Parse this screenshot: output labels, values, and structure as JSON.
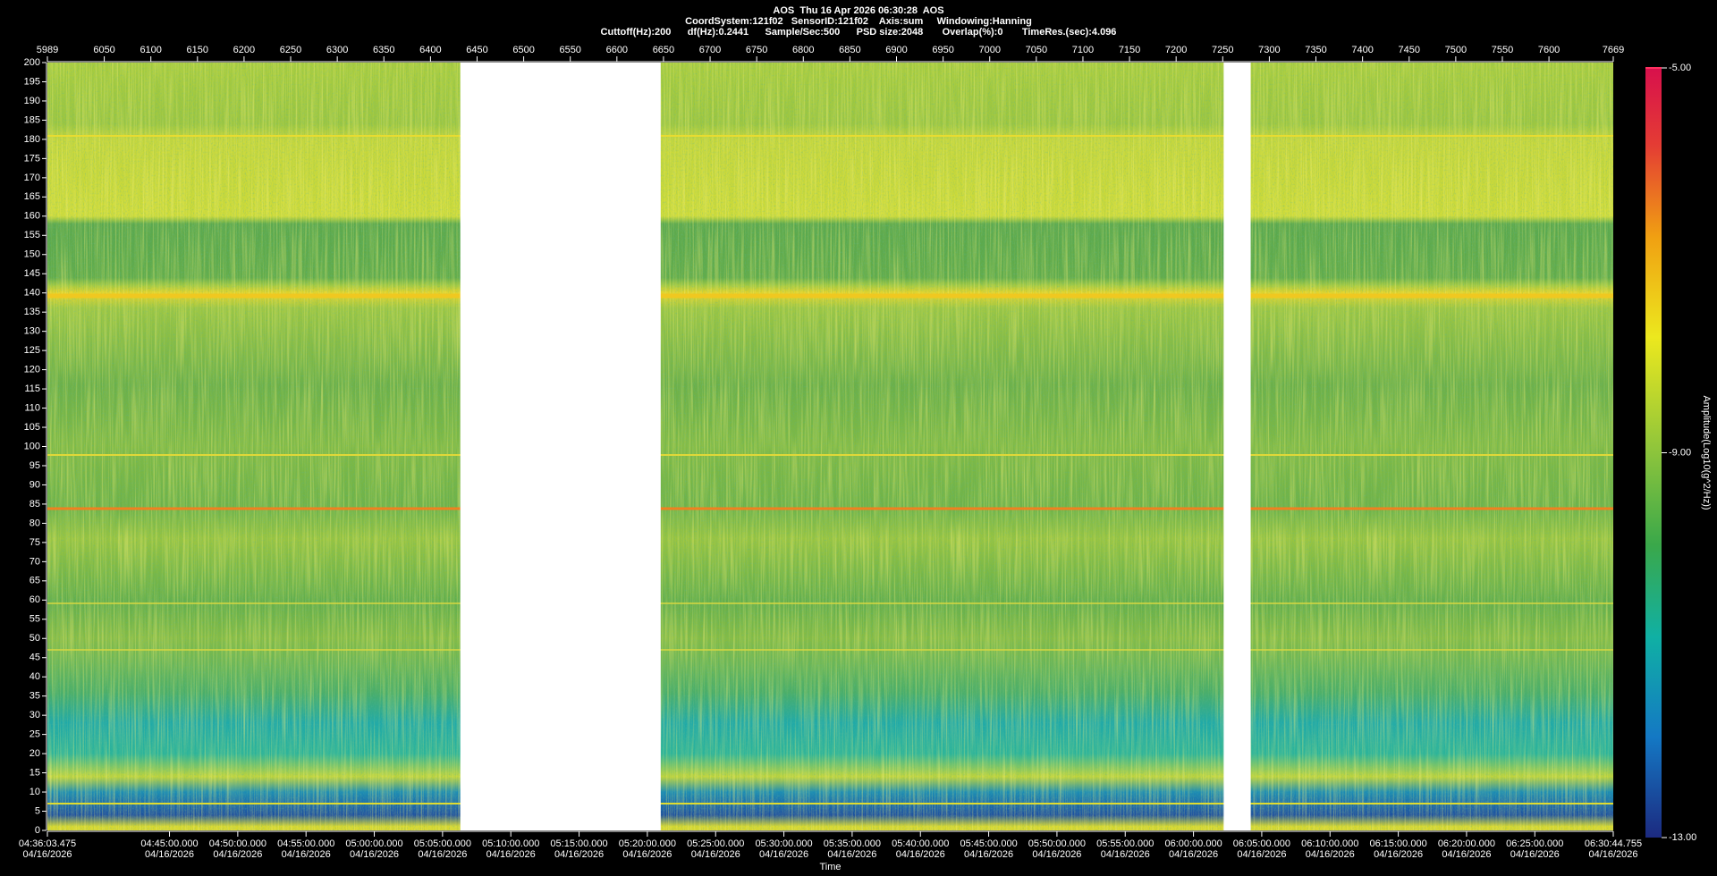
{
  "chart_data": {
    "type": "spectrogram",
    "header": [
      "AOS  Thu 16 Apr 2026 06:30:28  AOS",
      "CoordSystem:121f02   SensorID:121f02    Axis:sum     Windowing:Hanning",
      "Cuttoff(Hz):200      df(Hz):0.2441      Sample/Sec:500      PSD size:2048       Overlap(%):0       TimeRes.(sec):4.096"
    ],
    "xlim": [
      5989,
      7669
    ],
    "xticks": [
      5989,
      6050,
      6100,
      6150,
      6200,
      6250,
      6300,
      6350,
      6400,
      6450,
      6500,
      6550,
      6600,
      6650,
      6700,
      6750,
      6800,
      6850,
      6900,
      6950,
      7000,
      7050,
      7100,
      7150,
      7200,
      7250,
      7300,
      7350,
      7400,
      7450,
      7500,
      7550,
      7600,
      7669
    ],
    "ylim": [
      0,
      200
    ],
    "yticks": [
      0,
      5,
      10,
      15,
      20,
      25,
      30,
      35,
      40,
      45,
      50,
      55,
      60,
      65,
      70,
      75,
      80,
      85,
      90,
      95,
      100,
      105,
      110,
      115,
      120,
      125,
      130,
      135,
      140,
      145,
      150,
      155,
      160,
      165,
      170,
      175,
      180,
      185,
      190,
      195,
      200
    ],
    "gaps": [
      [
        6432,
        6647
      ],
      [
        7251,
        7280
      ]
    ],
    "xlabel": "Time",
    "tlim": [
      16563.475,
      23444.755
    ],
    "time_ticks": [
      {
        "value": 16563.475,
        "label": "04:36:03.475",
        "date": "04/16/2026"
      },
      {
        "value": 17100,
        "label": "04:45:00.000",
        "date": "04/16/2026"
      },
      {
        "value": 17400,
        "label": "04:50:00.000",
        "date": "04/16/2026"
      },
      {
        "value": 17700,
        "label": "04:55:00.000",
        "date": "04/16/2026"
      },
      {
        "value": 18000,
        "label": "05:00:00.000",
        "date": "04/16/2026"
      },
      {
        "value": 18300,
        "label": "05:05:00.000",
        "date": "04/16/2026"
      },
      {
        "value": 18600,
        "label": "05:10:00.000",
        "date": "04/16/2026"
      },
      {
        "value": 18900,
        "label": "05:15:00.000",
        "date": "04/16/2026"
      },
      {
        "value": 19200,
        "label": "05:20:00.000",
        "date": "04/16/2026"
      },
      {
        "value": 19500,
        "label": "05:25:00.000",
        "date": "04/16/2026"
      },
      {
        "value": 19800,
        "label": "05:30:00.000",
        "date": "04/16/2026"
      },
      {
        "value": 20100,
        "label": "05:35:00.000",
        "date": "04/16/2026"
      },
      {
        "value": 20400,
        "label": "05:40:00.000",
        "date": "04/16/2026"
      },
      {
        "value": 20700,
        "label": "05:45:00.000",
        "date": "04/16/2026"
      },
      {
        "value": 21000,
        "label": "05:50:00.000",
        "date": "04/16/2026"
      },
      {
        "value": 21300,
        "label": "05:55:00.000",
        "date": "04/16/2026"
      },
      {
        "value": 21600,
        "label": "06:00:00.000",
        "date": "04/16/2026"
      },
      {
        "value": 21900,
        "label": "06:05:00.000",
        "date": "04/16/2026"
      },
      {
        "value": 22200,
        "label": "06:10:00.000",
        "date": "04/16/2026"
      },
      {
        "value": 22500,
        "label": "06:15:00.000",
        "date": "04/16/2026"
      },
      {
        "value": 22800,
        "label": "06:20:00.000",
        "date": "04/16/2026"
      },
      {
        "value": 23100,
        "label": "06:25:00.000",
        "date": "04/16/2026"
      },
      {
        "value": 23444.755,
        "label": "06:30:44.755",
        "date": "04/16/2026"
      }
    ],
    "colorbar": {
      "label": "Amplitude(Log10(g^2/Hz))",
      "lim": [
        -13,
        -5
      ],
      "ticks": [
        {
          "value": -5,
          "label": "-5.00"
        },
        {
          "value": -9,
          "label": "-9.00"
        },
        {
          "value": -13,
          "label": "-13.00"
        }
      ]
    }
  }
}
